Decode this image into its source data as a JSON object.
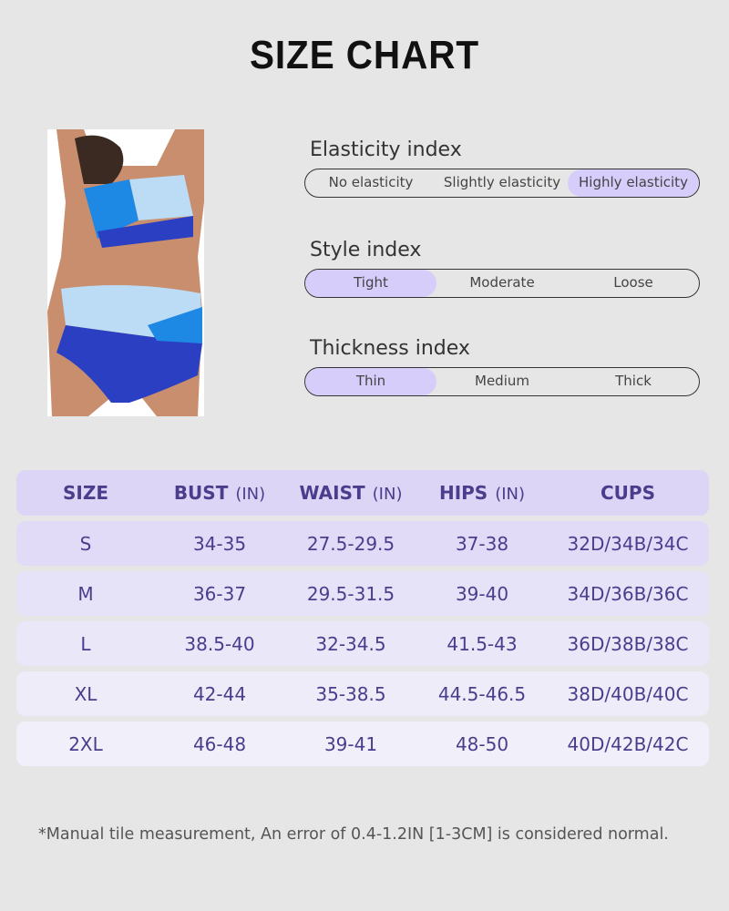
{
  "title": "SIZE CHART",
  "indices": [
    {
      "label": "Elasticity index",
      "options": [
        "No elasticity",
        "Slightly elasticity",
        "Highly elasticity"
      ],
      "selected": 2
    },
    {
      "label": "Style index",
      "options": [
        "Tight",
        "Moderate",
        "Loose"
      ],
      "selected": 0
    },
    {
      "label": "Thickness index",
      "options": [
        "Thin",
        "Medium",
        "Thick"
      ],
      "selected": 0
    }
  ],
  "table": {
    "headers": [
      {
        "name": "SIZE",
        "unit": ""
      },
      {
        "name": "BUST",
        "unit": "(IN)"
      },
      {
        "name": "WAIST",
        "unit": "(IN)"
      },
      {
        "name": "HIPS",
        "unit": "(IN)"
      },
      {
        "name": "CUPS",
        "unit": ""
      }
    ],
    "rows": [
      [
        "S",
        "34-35",
        "27.5-29.5",
        "37-38",
        "32D/34B/34C"
      ],
      [
        "M",
        "36-37",
        "29.5-31.5",
        "39-40",
        "34D/36B/36C"
      ],
      [
        "L",
        "38.5-40",
        "32-34.5",
        "41.5-43",
        "36D/38B/38C"
      ],
      [
        "XL",
        "42-44",
        "35-38.5",
        "44.5-46.5",
        "38D/40B/40C"
      ],
      [
        "2XL",
        "46-48",
        "39-41",
        "48-50",
        "40D/42B/42C"
      ]
    ]
  },
  "note": "*Manual tile measurement, An error of 0.4-1.2IN [1-3CM] is considered normal.",
  "colors": {
    "accent": "#d6cdfa",
    "text": "#4b3d8c",
    "row_bg": [
      "#e1dbf8",
      "#e6e2f8",
      "#eae7f9",
      "#eeecf9",
      "#f1f0fa"
    ]
  }
}
